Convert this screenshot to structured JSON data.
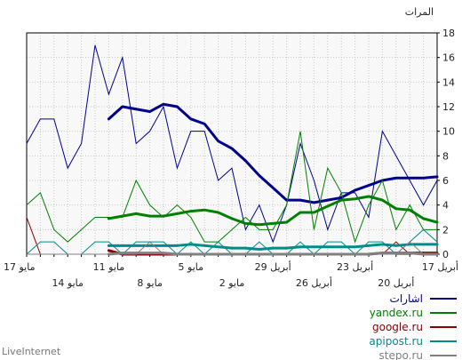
{
  "brand": "LiveInternet",
  "chart_data": {
    "type": "line",
    "ylabel": "المرات",
    "ylim": [
      0,
      18
    ],
    "yticks": [
      0,
      2,
      4,
      6,
      8,
      10,
      12,
      14,
      16,
      18
    ],
    "grid": true,
    "legend_position": "bottom-right",
    "x_labels_row1": [
      {
        "i": 0,
        "label": "17 مايو"
      },
      {
        "i": 6,
        "label": "11 مايو"
      },
      {
        "i": 12,
        "label": "5 مايو"
      },
      {
        "i": 18,
        "label": "29 أبريل"
      },
      {
        "i": 24,
        "label": "23 أبريل"
      },
      {
        "i": 30,
        "label": "17 أبريل"
      }
    ],
    "x_labels_row2": [
      {
        "i": 3,
        "label": "14 مايو"
      },
      {
        "i": 9,
        "label": "8 مايو"
      },
      {
        "i": 15,
        "label": "2 مايو"
      },
      {
        "i": 21,
        "label": "26 أبريل"
      },
      {
        "i": 27,
        "label": "20 أبريل"
      }
    ],
    "series": [
      {
        "name": "اشارات",
        "color": "#00008b",
        "values": [
          9,
          11,
          11,
          7,
          9,
          17,
          13,
          16,
          9,
          10,
          12,
          7,
          10,
          10,
          6,
          7,
          2,
          4,
          1,
          4,
          9,
          6,
          2,
          5,
          5,
          3,
          10,
          8,
          6,
          4,
          6
        ],
        "trend": [
          null,
          null,
          null,
          null,
          null,
          null,
          11,
          12,
          11.8,
          11.6,
          12.2,
          12,
          11,
          10.6,
          9.2,
          8.6,
          7.6,
          6.4,
          5.4,
          4.4,
          4.4,
          4.2,
          4.4,
          4.6,
          5.2,
          5.6,
          6,
          6.2,
          6.2,
          6.2,
          6.3
        ]
      },
      {
        "name": "yandex.ru",
        "color": "#008000",
        "values": [
          4,
          5,
          2,
          1,
          2,
          3,
          3,
          3,
          6,
          4,
          3,
          4,
          3,
          1,
          1,
          2,
          3,
          2,
          2,
          4,
          10,
          2,
          7,
          5,
          1,
          4,
          6,
          2,
          4,
          2,
          2
        ],
        "trend": [
          null,
          null,
          null,
          null,
          null,
          null,
          2.9,
          3.1,
          3.3,
          3.1,
          3.1,
          3.3,
          3.5,
          3.6,
          3.4,
          2.9,
          2.5,
          2.4,
          2.5,
          2.6,
          3.4,
          3.4,
          3.9,
          4.4,
          4.5,
          4.7,
          4.4,
          3.7,
          3.6,
          2.9,
          2.6
        ]
      },
      {
        "name": "google.ru",
        "color": "#8b0000",
        "values": [
          3,
          0,
          0,
          0,
          0,
          0,
          0,
          0,
          0,
          0,
          0,
          0,
          0,
          0,
          0,
          0,
          0,
          0,
          0,
          0,
          0,
          0,
          0,
          0,
          0,
          0,
          0,
          1,
          0,
          0,
          0
        ],
        "trend": [
          null,
          null,
          null,
          null,
          null,
          null,
          0.3,
          0,
          0,
          0,
          0,
          0,
          0,
          0,
          0,
          0,
          0,
          0,
          0,
          0,
          0,
          0,
          0,
          0,
          0,
          0,
          0.1,
          0.1,
          0.1,
          0.1,
          0.1
        ]
      },
      {
        "name": "apipost.ru",
        "color": "#008b8b",
        "values": [
          0,
          1,
          1,
          0,
          0,
          1,
          1,
          0,
          1,
          1,
          1,
          0,
          1,
          0,
          1,
          0,
          0,
          1,
          0,
          0,
          1,
          0,
          1,
          1,
          0,
          1,
          1,
          0,
          1,
          2,
          1
        ],
        "trend": [
          null,
          null,
          null,
          null,
          null,
          null,
          0.7,
          0.7,
          0.7,
          0.7,
          0.7,
          0.7,
          0.8,
          0.7,
          0.6,
          0.5,
          0.5,
          0.4,
          0.5,
          0.5,
          0.6,
          0.6,
          0.6,
          0.6,
          0.6,
          0.7,
          0.8,
          0.7,
          0.8,
          0.8,
          0.8
        ]
      },
      {
        "name": "stepo.ru",
        "color": "#808080",
        "values": [
          0,
          0,
          0,
          0,
          0,
          0,
          0,
          0,
          0,
          1,
          0,
          0,
          0,
          0,
          0,
          0,
          0,
          0,
          0,
          0,
          0,
          0,
          0,
          0,
          0,
          0,
          0,
          0,
          1,
          0,
          0
        ],
        "trend": [
          null,
          null,
          null,
          null,
          null,
          null,
          0,
          0.1,
          0.1,
          0.1,
          0.1,
          0,
          0,
          0,
          0,
          0,
          0,
          0,
          0,
          0,
          0,
          0,
          0,
          0,
          0,
          0,
          0.1,
          0.1,
          0.1,
          0,
          0
        ]
      }
    ]
  }
}
